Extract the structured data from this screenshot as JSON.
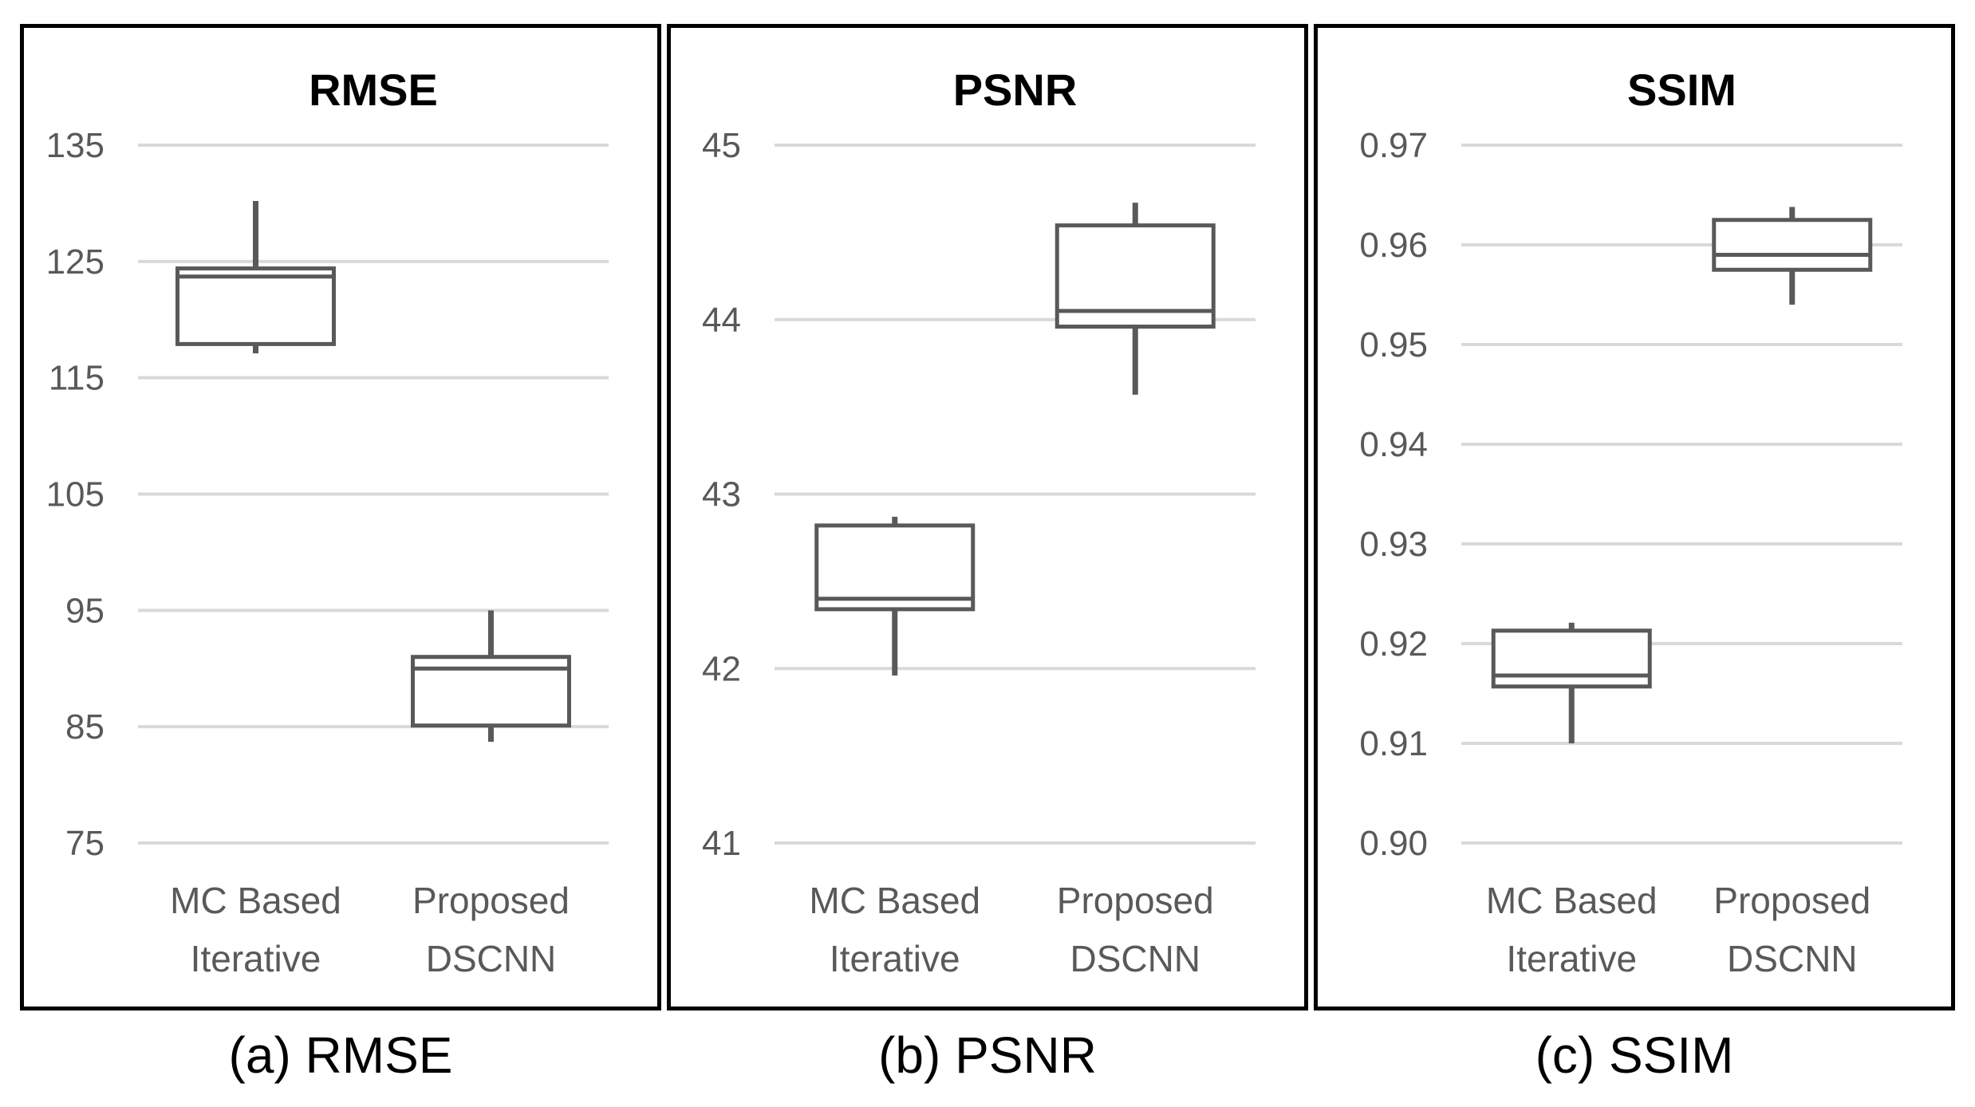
{
  "figure": {
    "background": "#ffffff",
    "colors": {
      "panel_border": "#000000",
      "gridline": "#d9d9d9",
      "box_stroke": "#595959",
      "box_fill": "#ffffff",
      "whisker": "#595959",
      "tick_text": "#595959",
      "category_text": "#595959",
      "title_text": "#000000",
      "caption_text": "#000000"
    }
  },
  "chart_data": [
    {
      "type": "boxplot",
      "title": "RMSE",
      "caption": "(a) RMSE",
      "grid": true,
      "legend": "none",
      "ylim": [
        75,
        135
      ],
      "ticks": [
        {
          "value": 135,
          "label": "135"
        },
        {
          "value": 125,
          "label": "125"
        },
        {
          "value": 115,
          "label": "115"
        },
        {
          "value": 105,
          "label": "105"
        },
        {
          "value": 95,
          "label": "95"
        },
        {
          "value": 85,
          "label": "85"
        },
        {
          "value": 75,
          "label": "75"
        }
      ],
      "series": [
        {
          "name": "MC Based Iterative",
          "label_lines": [
            "MC Based",
            "Iterative"
          ],
          "whisker_low": 117.1,
          "q1": 117.9,
          "median": 123.7,
          "q3": 124.4,
          "whisker_high": 130.2
        },
        {
          "name": "Proposed DSCNN",
          "label_lines": [
            "Proposed",
            "DSCNN"
          ],
          "whisker_low": 83.7,
          "q1": 85.1,
          "median": 90.0,
          "q3": 91.0,
          "whisker_high": 95.0
        }
      ]
    },
    {
      "type": "boxplot",
      "title": "PSNR",
      "caption": "(b) PSNR",
      "grid": true,
      "legend": "none",
      "ylim": [
        41,
        45
      ],
      "ticks": [
        {
          "value": 45,
          "label": "45"
        },
        {
          "value": 44,
          "label": "44"
        },
        {
          "value": 43,
          "label": "43"
        },
        {
          "value": 42,
          "label": "42"
        },
        {
          "value": 41,
          "label": "41"
        }
      ],
      "series": [
        {
          "name": "MC Based Iterative",
          "label_lines": [
            "MC Based",
            "Iterative"
          ],
          "whisker_low": 41.96,
          "q1": 42.34,
          "median": 42.4,
          "q3": 42.82,
          "whisker_high": 42.87
        },
        {
          "name": "Proposed DSCNN",
          "label_lines": [
            "Proposed",
            "DSCNN"
          ],
          "whisker_low": 43.57,
          "q1": 43.96,
          "median": 44.05,
          "q3": 44.54,
          "whisker_high": 44.67
        }
      ]
    },
    {
      "type": "boxplot",
      "title": "SSIM",
      "caption": "(c) SSIM",
      "grid": true,
      "legend": "none",
      "ylim": [
        0.9,
        0.97
      ],
      "ticks": [
        {
          "value": 0.97,
          "label": "0.97"
        },
        {
          "value": 0.96,
          "label": "0.96"
        },
        {
          "value": 0.95,
          "label": "0.95"
        },
        {
          "value": 0.94,
          "label": "0.94"
        },
        {
          "value": 0.93,
          "label": "0.93"
        },
        {
          "value": 0.92,
          "label": "0.92"
        },
        {
          "value": 0.91,
          "label": "0.91"
        },
        {
          "value": 0.9,
          "label": "0.90"
        }
      ],
      "series": [
        {
          "name": "MC Based Iterative",
          "label_lines": [
            "MC Based",
            "Iterative"
          ],
          "whisker_low": 0.91,
          "q1": 0.9157,
          "median": 0.9168,
          "q3": 0.9213,
          "whisker_high": 0.9221
        },
        {
          "name": "Proposed DSCNN",
          "label_lines": [
            "Proposed",
            "DSCNN"
          ],
          "whisker_low": 0.954,
          "q1": 0.9575,
          "median": 0.959,
          "q3": 0.9625,
          "whisker_high": 0.9638
        }
      ]
    }
  ]
}
